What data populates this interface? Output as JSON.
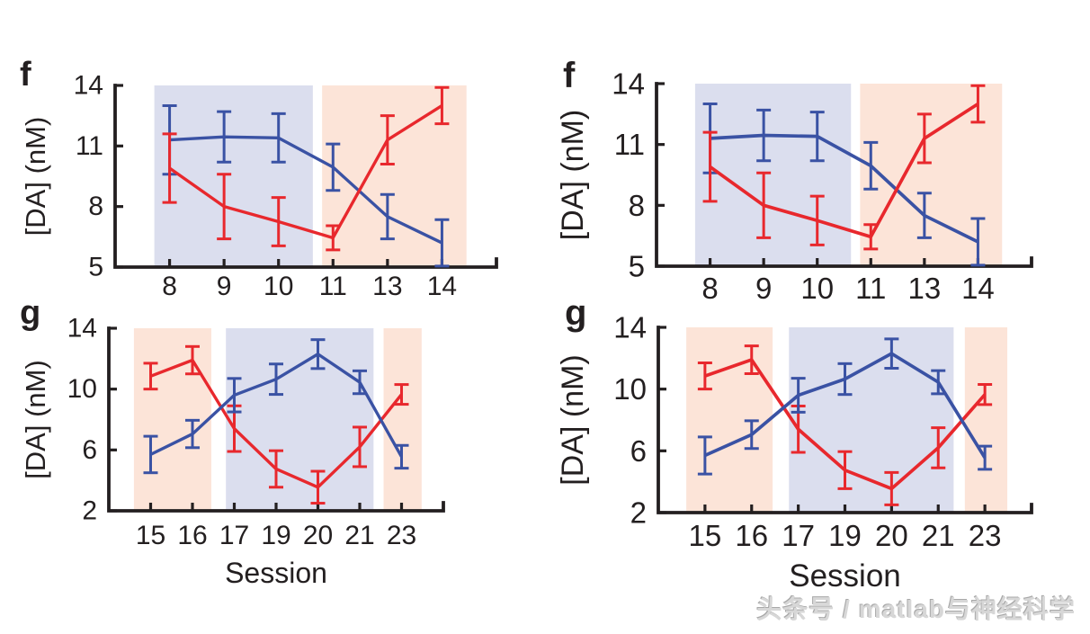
{
  "page": {
    "watermark": "头条号 / matlab与神经科学"
  },
  "colors": {
    "line_blue": "#3a52a4",
    "line_red": "#e8282d",
    "band_blue": "#dbdeee",
    "band_orange": "#fce4d8",
    "axis": "#231f20",
    "text": "#231f20"
  },
  "chart_data": [
    {
      "id": "f",
      "panel_label": "f",
      "type": "line",
      "note": "errorbar line plot, duplicated left and right in the figure",
      "title": "",
      "xlabel": "",
      "ylabel": "[DA] (nM)",
      "categories": [
        "8",
        "9",
        "10",
        "11",
        "13",
        "14"
      ],
      "ylim": [
        5,
        14
      ],
      "yticks": [
        5,
        8,
        11,
        14
      ],
      "grid": false,
      "legend": "none",
      "x_axis_span": [
        0,
        7
      ],
      "series": [
        {
          "name": "blue-series",
          "color_key": "line_blue",
          "values": [
            11.3,
            11.45,
            11.4,
            9.95,
            7.5,
            6.2
          ],
          "errors": [
            1.7,
            1.25,
            1.2,
            1.15,
            1.1,
            1.15
          ]
        },
        {
          "name": "red-series",
          "color_key": "line_red",
          "values": [
            9.9,
            8.0,
            7.25,
            6.45,
            11.3,
            13.0
          ],
          "errors": [
            1.7,
            1.6,
            1.2,
            0.6,
            1.2,
            0.9
          ]
        }
      ],
      "bands": [
        {
          "color_key": "band_blue",
          "from": 0.72,
          "to": 3.63
        },
        {
          "color_key": "band_orange",
          "from": 3.8,
          "to": 6.45
        }
      ]
    },
    {
      "id": "g",
      "panel_label": "g",
      "type": "line",
      "note": "errorbar line plot, duplicated left and right in the figure",
      "title": "",
      "xlabel": "Session",
      "ylabel": "[DA] (nM)",
      "categories": [
        "15",
        "16",
        "17",
        "19",
        "20",
        "21",
        "23"
      ],
      "ylim": [
        2,
        14
      ],
      "yticks": [
        2,
        6,
        10,
        14
      ],
      "grid": false,
      "legend": "none",
      "x_axis_span": [
        0,
        8
      ],
      "series": [
        {
          "name": "red-series",
          "color_key": "line_red",
          "values": [
            10.85,
            11.9,
            7.4,
            4.75,
            3.55,
            6.2,
            9.65
          ],
          "errors": [
            0.85,
            0.9,
            1.5,
            1.2,
            1.05,
            1.3,
            0.65
          ]
        },
        {
          "name": "blue-series",
          "color_key": "line_blue",
          "values": [
            5.7,
            7.05,
            9.6,
            10.65,
            12.3,
            10.45,
            5.55
          ],
          "errors": [
            1.2,
            0.9,
            1.1,
            1.0,
            0.95,
            0.75,
            0.75
          ]
        }
      ],
      "bands": [
        {
          "color_key": "band_orange",
          "from": 0.6,
          "to": 2.45
        },
        {
          "color_key": "band_blue",
          "from": 2.8,
          "to": 6.33
        },
        {
          "color_key": "band_orange",
          "from": 6.57,
          "to": 7.48
        }
      ]
    }
  ]
}
